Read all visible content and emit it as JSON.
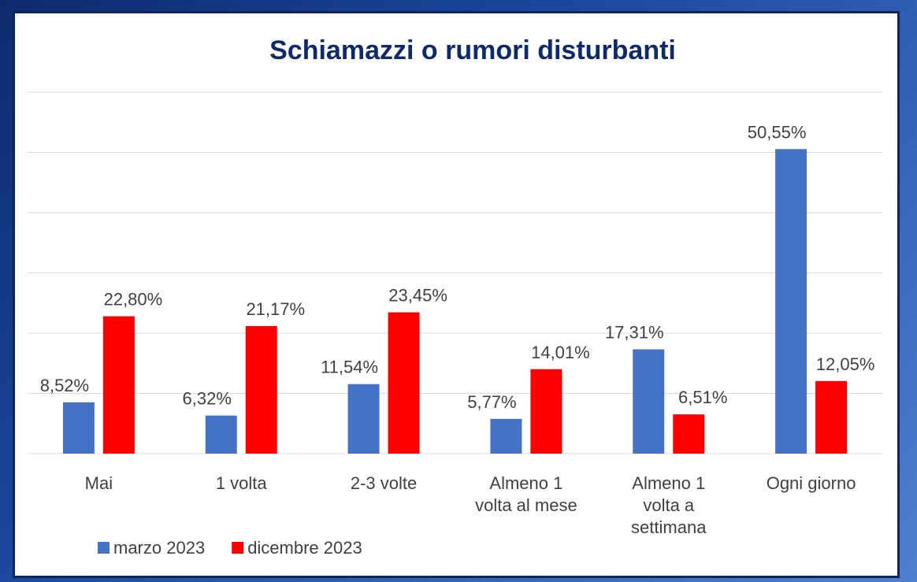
{
  "chart_data": {
    "type": "bar",
    "title": "Schiamazzi o rumori disturbanti",
    "categories": [
      "Mai",
      "1 volta",
      "2-3 volte",
      "Almeno 1\nvolta al mese",
      "Almeno 1\nvolta a\nsettimana",
      "Ogni giorno"
    ],
    "series": [
      {
        "name": "marzo 2023",
        "color": "#4472c4",
        "values": [
          8.52,
          6.32,
          11.54,
          5.77,
          17.31,
          50.55
        ],
        "value_labels": [
          "8,52%",
          "6,32%",
          "11,54%",
          "5,77%",
          "17,31%",
          "50,55%"
        ]
      },
      {
        "name": "dicembre 2023",
        "color": "#ff0000",
        "values": [
          22.8,
          21.17,
          23.45,
          14.01,
          6.51,
          12.05
        ],
        "value_labels": [
          "22,80%",
          "21,17%",
          "23,45%",
          "14,01%",
          "6,51%",
          "12,05%"
        ]
      }
    ],
    "ylim": [
      0,
      60
    ],
    "yticks": [
      0,
      10,
      20,
      30,
      40,
      50,
      60
    ],
    "grid": true,
    "legend": "bottom-left"
  }
}
